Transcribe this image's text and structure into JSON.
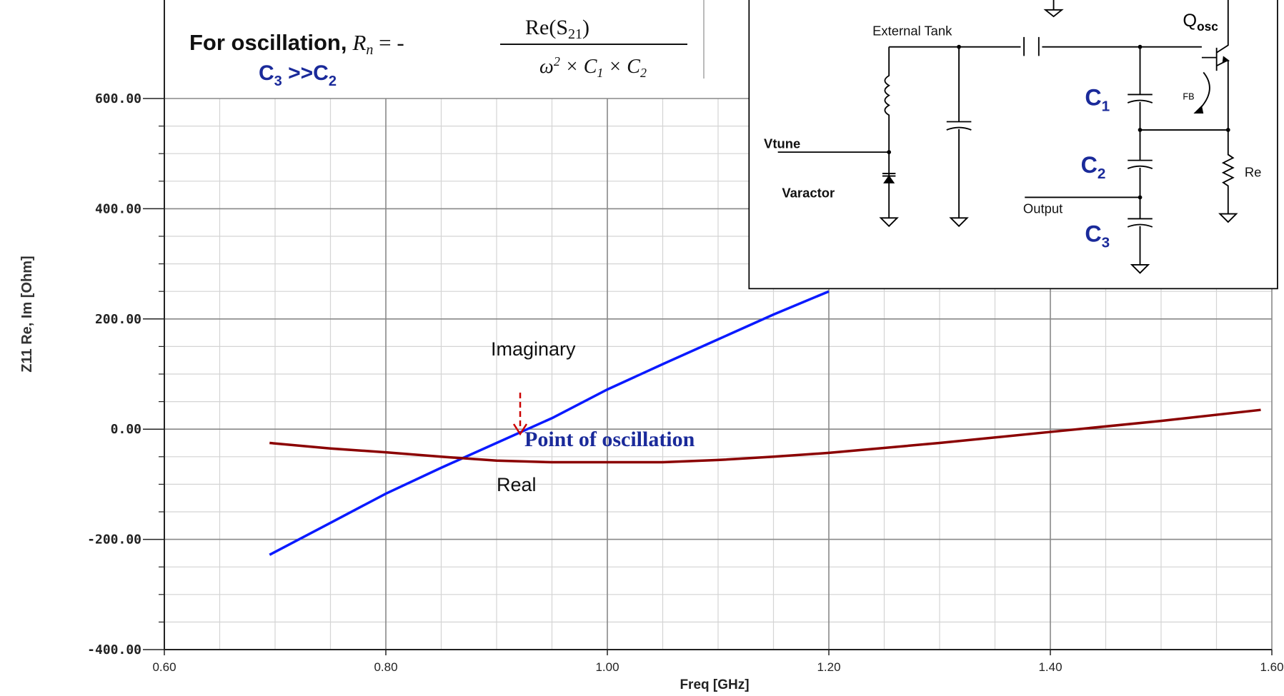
{
  "chart_data": {
    "type": "line",
    "xlabel": "Freq [GHz]",
    "ylabel": "Z11 Re, Im [Ohm]",
    "xlim": [
      0.6,
      1.6
    ],
    "ylim": [
      -400,
      600
    ],
    "xticks": [
      {
        "value": 0.6,
        "label": "0.60"
      },
      {
        "value": 0.8,
        "label": "0.80"
      },
      {
        "value": 1.0,
        "label": "1.00"
      },
      {
        "value": 1.2,
        "label": "1.20"
      },
      {
        "value": 1.4,
        "label": "1.40"
      },
      {
        "value": 1.6,
        "label": "1.60"
      }
    ],
    "yticks": [
      {
        "value": -400,
        "label": "-400.00"
      },
      {
        "value": -200,
        "label": "-200.00"
      },
      {
        "value": 0,
        "label": "0.00"
      },
      {
        "value": 200,
        "label": "200.00"
      },
      {
        "value": 400,
        "label": "400.00"
      },
      {
        "value": 600,
        "label": "600.00"
      }
    ],
    "minor_xticks": [
      0.65,
      0.7,
      0.75,
      0.85,
      0.9,
      0.95,
      1.05,
      1.1,
      1.15,
      1.25,
      1.3,
      1.35,
      1.45,
      1.5,
      1.55
    ],
    "minor_yticks": [
      -350,
      -300,
      -250,
      -150,
      -100,
      -50,
      50,
      100,
      150,
      250,
      300,
      350,
      450,
      500,
      550
    ],
    "grid": true,
    "series": [
      {
        "name": "Imaginary",
        "color": "#0a1aff",
        "x": [
          0.695,
          0.75,
          0.8,
          0.85,
          0.9,
          0.95,
          1.0,
          1.05,
          1.1,
          1.15,
          1.2
        ],
        "values": [
          -228,
          -170,
          -117,
          -70,
          -25,
          20,
          72,
          118,
          163,
          208,
          250
        ]
      },
      {
        "name": "Real",
        "color": "#8b0000",
        "x": [
          0.695,
          0.75,
          0.8,
          0.85,
          0.9,
          0.95,
          1.0,
          1.05,
          1.1,
          1.15,
          1.2,
          1.3,
          1.4,
          1.5,
          1.59
        ],
        "values": [
          -25,
          -35,
          -42,
          -50,
          -57,
          -60,
          -60,
          -60,
          -56,
          -50,
          -43,
          -25,
          -5,
          15,
          35
        ]
      }
    ],
    "annotation": "Point of oscillation",
    "condition": [
      "C",
      "3",
      " >>C",
      "2"
    ],
    "formula": {
      "lead": "For oscillation,",
      "lhs": [
        "R",
        "n",
        " = -"
      ],
      "numerator": [
        "Re(S",
        "21",
        ")"
      ],
      "denominator": [
        "ω",
        "2",
        " × C",
        "1",
        " × C",
        "2"
      ]
    },
    "inset": {
      "tank": "External Tank",
      "vtune": "Vtune",
      "varactor": "Varactor",
      "output": "Output",
      "re": "Re",
      "fb": "FB",
      "q": [
        "Q",
        "osc"
      ],
      "c1": [
        "C",
        "1"
      ],
      "c2": [
        "C",
        "2"
      ],
      "c3": [
        "C",
        "3"
      ]
    }
  }
}
